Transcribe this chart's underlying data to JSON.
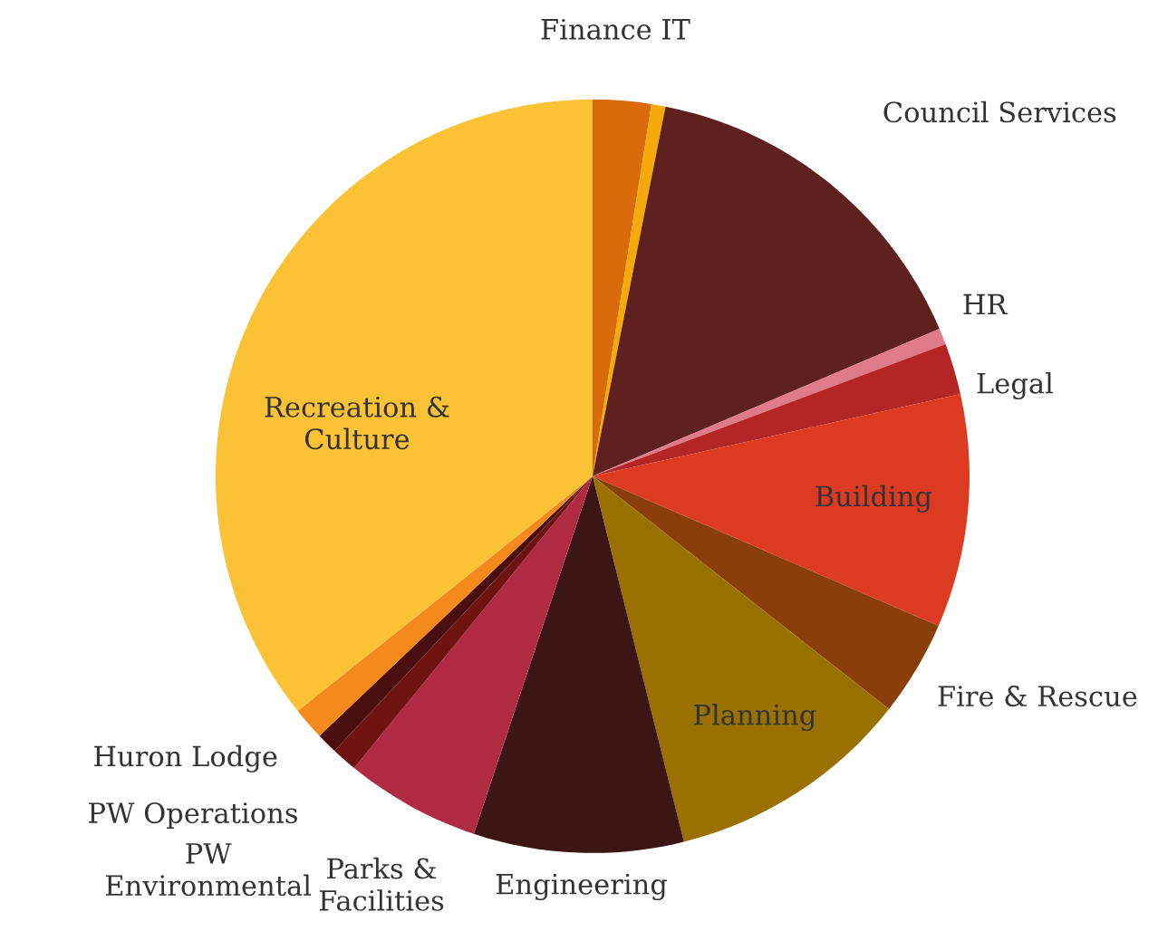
{
  "chart_data": {
    "type": "pie",
    "categories": [
      "Finance IT",
      null,
      "Council Services",
      "HR",
      "Legal",
      "Building",
      "Fire & Rescue",
      "Planning",
      "Engineering",
      "Parks &\nFacilities",
      "PW\nEnvironmental",
      "PW Operations",
      "Huron Lodge",
      "Recreation &\nCulture"
    ],
    "values": [
      2.5,
      0.6,
      15.5,
      0.7,
      2.2,
      10.0,
      4.1,
      10.5,
      9.0,
      5.8,
      1.1,
      0.9,
      1.4,
      35.7
    ],
    "colors": [
      "#d96b0b",
      "#f5a90a",
      "#5f2020",
      "#e07b8a",
      "#b52525",
      "#dd3a22",
      "#8a3f0a",
      "#9a7000",
      "#3c1515",
      "#b02a42",
      "#6e1212",
      "#4a0e0e",
      "#f58a1c",
      "#fcc235"
    ]
  }
}
